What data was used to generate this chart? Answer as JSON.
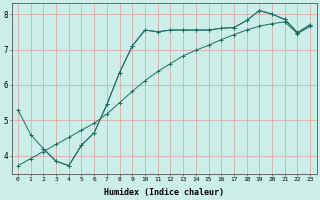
{
  "xlabel": "Humidex (Indice chaleur)",
  "bg_color": "#cceee8",
  "grid_color": "#d9a0a0",
  "line_color": "#1a6e60",
  "xlim": [
    -0.5,
    23.5
  ],
  "ylim": [
    3.5,
    8.3
  ],
  "xticks": [
    0,
    1,
    2,
    3,
    4,
    5,
    6,
    7,
    8,
    9,
    10,
    11,
    12,
    13,
    14,
    15,
    16,
    17,
    18,
    19,
    20,
    21,
    22,
    23
  ],
  "yticks": [
    4,
    5,
    6,
    7,
    8
  ],
  "series1_x": [
    0,
    1,
    2,
    3,
    4,
    5,
    6,
    7,
    8,
    9,
    10,
    11,
    12,
    13,
    14,
    15,
    16,
    17,
    18,
    19,
    20,
    21,
    22,
    23
  ],
  "series1_y": [
    5.3,
    4.6,
    4.2,
    3.85,
    3.72,
    4.3,
    4.65,
    5.45,
    6.35,
    7.1,
    7.55,
    7.5,
    7.55,
    7.55,
    7.55,
    7.55,
    7.6,
    7.62,
    7.82,
    8.1,
    8.0,
    7.85,
    7.48,
    7.7
  ],
  "series2_x": [
    2,
    3,
    4,
    5,
    6,
    7,
    8,
    9,
    10,
    11,
    12,
    13,
    14,
    15,
    16,
    17,
    18,
    19,
    20,
    21,
    22,
    23
  ],
  "series2_y": [
    4.2,
    3.85,
    3.72,
    4.3,
    4.65,
    5.45,
    6.35,
    7.1,
    7.55,
    7.5,
    7.55,
    7.55,
    7.55,
    7.55,
    7.6,
    7.62,
    7.82,
    8.1,
    8.0,
    7.85,
    7.48,
    7.7
  ],
  "series3_x": [
    0,
    1,
    2,
    3,
    4,
    5,
    6,
    7,
    8,
    9,
    10,
    11,
    12,
    13,
    14,
    15,
    16,
    17,
    18,
    19,
    20,
    21,
    22,
    23
  ],
  "series3_y": [
    3.72,
    3.92,
    4.12,
    4.32,
    4.52,
    4.72,
    4.92,
    5.18,
    5.5,
    5.82,
    6.12,
    6.38,
    6.6,
    6.82,
    6.98,
    7.12,
    7.28,
    7.42,
    7.55,
    7.66,
    7.73,
    7.78,
    7.45,
    7.65
  ]
}
